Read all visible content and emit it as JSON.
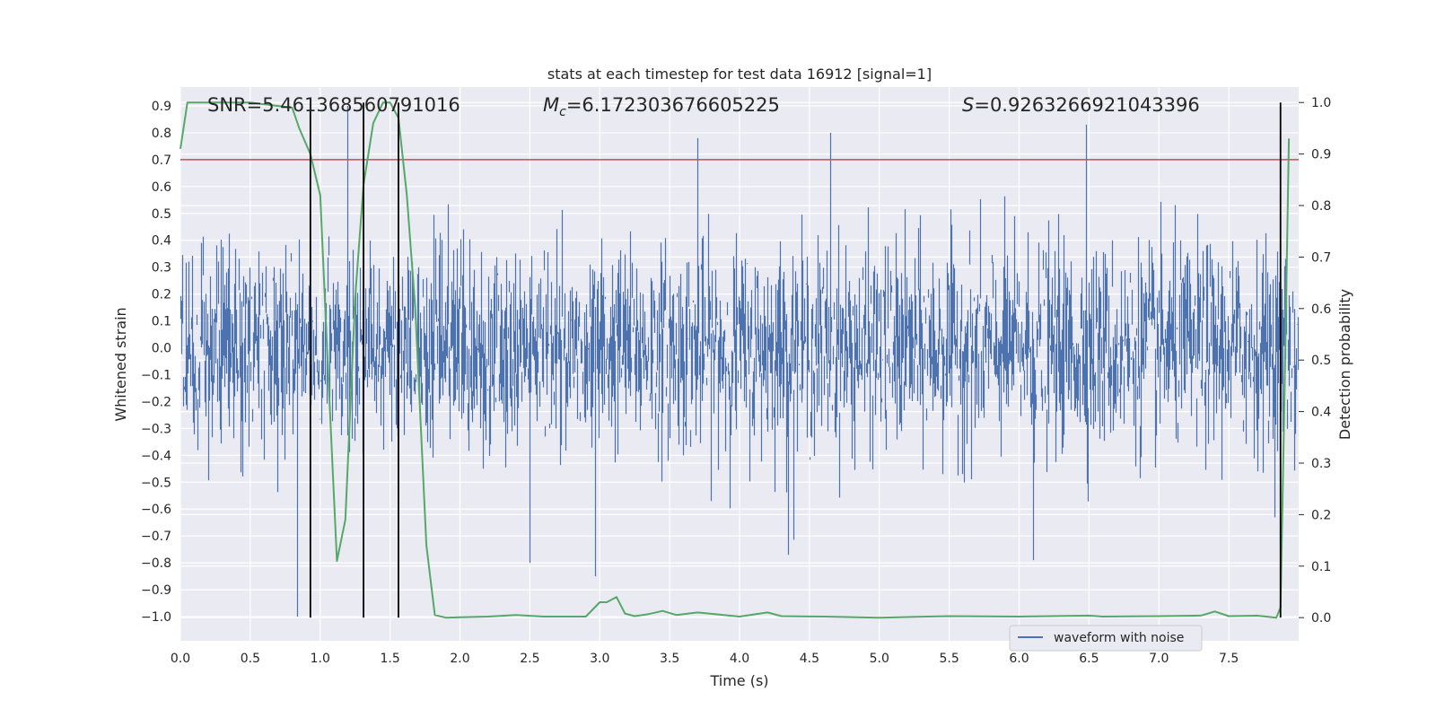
{
  "chart_data": {
    "type": "line",
    "title": "stats at each timestep for test data 16912 [signal=1]",
    "xlabel": "Time (s)",
    "ylabel_left": "Whitened strain",
    "ylabel_right": "Detection probability",
    "xlim": [
      0,
      8.0
    ],
    "ylim_left": [
      -1.09,
      0.97
    ],
    "ylim_right": [
      -0.045,
      1.03
    ],
    "x_ticks": [
      0,
      0.5,
      1,
      1.5,
      2,
      2.5,
      3,
      3.5,
      4,
      4.5,
      5,
      5.5,
      6,
      6.5,
      7,
      7.5
    ],
    "x_tick_labels": [
      "0.0",
      "0.5",
      "1.0",
      "1.5",
      "2.0",
      "2.5",
      "3.0",
      "3.5",
      "4.0",
      "4.5",
      "5.0",
      "5.5",
      "6.0",
      "6.5",
      "7.0",
      "7.5"
    ],
    "y_ticks_left": [
      -1.0,
      -0.9,
      -0.8,
      -0.7,
      -0.6,
      -0.5,
      -0.4,
      -0.3,
      -0.2,
      -0.1,
      0.0,
      0.1,
      0.2,
      0.3,
      0.4,
      0.5,
      0.6,
      0.7,
      0.8,
      0.9
    ],
    "y_tick_labels_left": [
      "−1.0",
      "−0.9",
      "−0.8",
      "−0.7",
      "−0.6",
      "−0.5",
      "−0.4",
      "−0.3",
      "−0.2",
      "−0.1",
      "0.0",
      "0.1",
      "0.2",
      "0.3",
      "0.4",
      "0.5",
      "0.6",
      "0.7",
      "0.8",
      "0.9"
    ],
    "y_ticks_right": [
      0.0,
      0.1,
      0.2,
      0.3,
      0.4,
      0.5,
      0.6,
      0.7,
      0.8,
      0.9,
      1.0
    ],
    "y_tick_labels_right": [
      "0.0",
      "0.1",
      "0.2",
      "0.3",
      "0.4",
      "0.5",
      "0.6",
      "0.7",
      "0.8",
      "0.9",
      "1.0"
    ],
    "threshold": {
      "value": 0.7,
      "axis": "left",
      "color": "#c44e52"
    },
    "vertical_markers": [
      0.93,
      1.31,
      1.56,
      7.87
    ],
    "waveform": {
      "name": "waveform with noise",
      "color": "#4c72b0",
      "noise_sigma": 0.19,
      "duration": 8.0,
      "spikes": [
        {
          "x": 0.84,
          "min": -1.0
        },
        {
          "x": 1.2,
          "max": 0.9
        },
        {
          "x": 2.5,
          "min": -0.8
        },
        {
          "x": 2.97,
          "min": -0.85
        },
        {
          "x": 3.7,
          "max": 0.78
        },
        {
          "x": 4.35,
          "min": -0.77
        },
        {
          "x": 4.65,
          "max": 0.8
        },
        {
          "x": 6.1,
          "min": -0.79
        },
        {
          "x": 6.48,
          "max": 0.83
        }
      ]
    },
    "probability": {
      "name": "detection probability",
      "color": "#55a868",
      "x": [
        0.0,
        0.05,
        0.2,
        0.5,
        0.8,
        0.85,
        0.93,
        1.0,
        1.05,
        1.12,
        1.18,
        1.25,
        1.31,
        1.38,
        1.45,
        1.5,
        1.56,
        1.62,
        1.68,
        1.76,
        1.82,
        1.9,
        2.2,
        2.4,
        2.6,
        2.9,
        3.0,
        3.05,
        3.12,
        3.18,
        3.25,
        3.35,
        3.45,
        3.55,
        3.7,
        4.0,
        4.2,
        4.3,
        4.6,
        5.0,
        5.5,
        6.0,
        6.5,
        6.6,
        7.0,
        7.3,
        7.4,
        7.5,
        7.7,
        7.84,
        7.87,
        7.9,
        7.93
      ],
      "y": [
        0.91,
        1.0,
        1.0,
        1.0,
        0.99,
        0.95,
        0.9,
        0.82,
        0.52,
        0.11,
        0.19,
        0.62,
        0.84,
        0.96,
        1.0,
        1.0,
        0.97,
        0.82,
        0.6,
        0.14,
        0.005,
        0.0,
        0.002,
        0.005,
        0.002,
        0.002,
        0.03,
        0.03,
        0.04,
        0.008,
        0.003,
        0.007,
        0.013,
        0.005,
        0.01,
        0.002,
        0.01,
        0.003,
        0.002,
        0.0,
        0.003,
        0.002,
        0.004,
        0.002,
        0.003,
        0.004,
        0.012,
        0.003,
        0.004,
        0.0,
        0.02,
        0.45,
        0.93
      ]
    },
    "annotations": {
      "snr": "SNR=5.461368560791016",
      "mc_symbol": "M",
      "mc_sub": "c",
      "mc_value": "=6.172303676605225",
      "s_symbol": "S",
      "s_value": "=0.9263266921043396"
    },
    "legend": {
      "position": "lower-right",
      "entries": [
        "waveform with noise"
      ]
    },
    "grid": true,
    "colors": {
      "axes_bg": "#eaeaf2",
      "grid": "#ffffff",
      "marker": "#000000"
    }
  }
}
